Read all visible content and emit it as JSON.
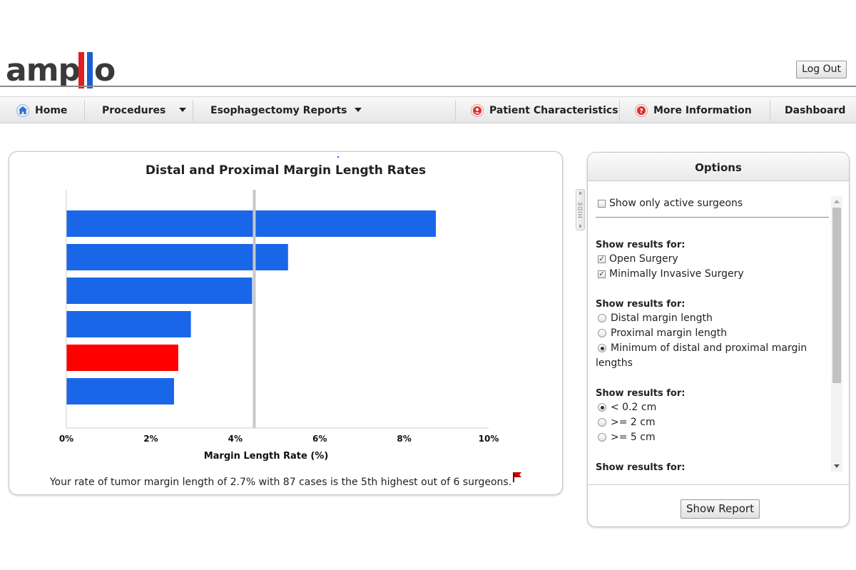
{
  "app": {
    "logo_text": "amplio",
    "logout_label": "Log Out"
  },
  "colors": {
    "bar": "#1a66e8",
    "bar_highlight": "#ff0000",
    "benchmark_line": "#c8c8c8",
    "logo_red": "#e02020",
    "logo_blue": "#1a5fd0",
    "nav_icon_blue": "#2f6fcf",
    "nav_icon_red": "#d93030"
  },
  "nav": {
    "home": "Home",
    "procedures": "Procedures",
    "esophagectomy_reports": "Esophagectomy Reports",
    "patient_characteristics": "Patient Characteristics",
    "more_information": "More Information",
    "dashboard": "Dashboard"
  },
  "chart_data": {
    "type": "bar",
    "orientation": "horizontal",
    "title": "Distal and Proximal Margin Length Rates",
    "xlabel": "Margin Length Rate (%)",
    "ylabel": "",
    "xlim": [
      0,
      10
    ],
    "xticks": [
      "0%",
      "2%",
      "4%",
      "6%",
      "8%",
      "10%"
    ],
    "values": [
      8.75,
      5.25,
      4.4,
      2.95,
      2.65,
      2.55
    ],
    "highlight_index": 4,
    "benchmark": 4.45,
    "grid": false
  },
  "caption": "Your rate of tumor margin length of 2.7% with 87 cases is the 5th highest out of 6 surgeons.",
  "hide_tab_label": "HIDE",
  "options": {
    "title": "Options",
    "active_surgeons_label": "Show only active surgeons",
    "section1_title": "Show results for:",
    "open_surgery": "Open Surgery",
    "mis": "Minimally Invasive Surgery",
    "section2_title": "Show results for:",
    "distal": "Distal margin length",
    "proximal": "Proximal margin length",
    "minimum_line1": "Minimum of distal and proximal margin",
    "minimum_line2": "lengths",
    "section3_title": "Show results for:",
    "lt_02": "< 0.2 cm",
    "ge_2": ">= 2 cm",
    "ge_5": ">= 5 cm",
    "section4_title": "Show results for:",
    "show_report_label": "Show Report"
  }
}
